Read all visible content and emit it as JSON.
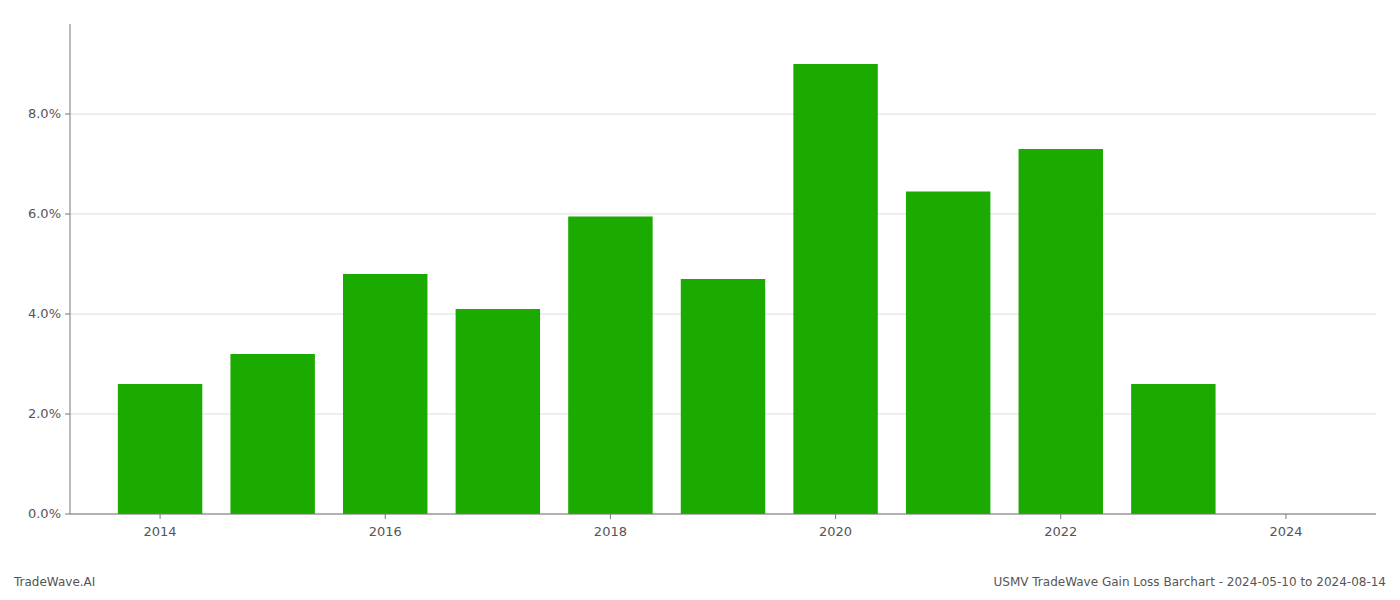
{
  "chart_data": {
    "type": "bar",
    "x": [
      2014,
      2015,
      2016,
      2017,
      2018,
      2019,
      2020,
      2021,
      2022,
      2023
    ],
    "values": [
      0.026,
      0.032,
      0.048,
      0.041,
      0.0595,
      0.047,
      0.09,
      0.0645,
      0.073,
      0.026
    ],
    "color": "#1aaa00",
    "xlim": [
      2013.2,
      2024.8
    ],
    "xticks": [
      2014,
      2016,
      2018,
      2020,
      2022,
      2024
    ],
    "ylim": [
      0,
      0.098
    ],
    "yticks": [
      {
        "value": 0,
        "label": "0.0%"
      },
      {
        "value": 0.02,
        "label": "2.0%"
      },
      {
        "value": 0.04,
        "label": "4.0%"
      },
      {
        "value": 0.06,
        "label": "6.0%"
      },
      {
        "value": 0.08,
        "label": "8.0%"
      }
    ],
    "grid": true,
    "annotations": [
      "TradeWave.AI",
      "USMV TradeWave Gain Loss Barchart - 2024-05-10 to 2024-08-14"
    ]
  }
}
